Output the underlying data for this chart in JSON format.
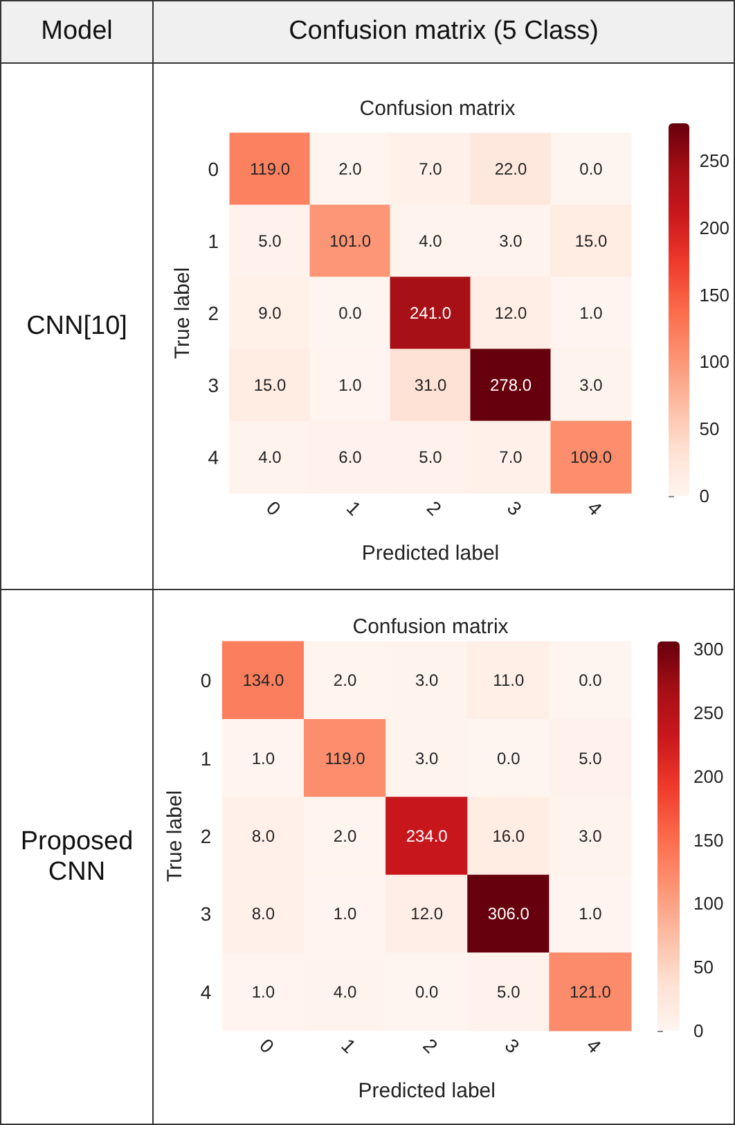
{
  "chart_data": [
    {
      "type": "other",
      "annotations": [
        "Model",
        "Confusion matrix (5 Class)",
        "CNN[10]",
        "Proposed CNN"
      ]
    },
    {
      "type": "heatmap",
      "title": "Confusion matrix",
      "xlabel": "Predicted label",
      "ylabel": "True label",
      "categories": [
        "0",
        "1",
        "2",
        "3",
        "4"
      ],
      "y_categories": [
        "0",
        "1",
        "2",
        "3",
        "4"
      ],
      "cells": [
        [
          119,
          2,
          7,
          22,
          0
        ],
        [
          5,
          101,
          4,
          3,
          15
        ],
        [
          9,
          0,
          241,
          12,
          1
        ],
        [
          15,
          1,
          31,
          278,
          3
        ],
        [
          4,
          6,
          5,
          7,
          109
        ]
      ],
      "cell_labels": [
        [
          "119.0",
          "2.0",
          "7.0",
          "22.0",
          "0.0"
        ],
        [
          "5.0",
          "101.0",
          "4.0",
          "3.0",
          "15.0"
        ],
        [
          "9.0",
          "0.0",
          "241.0",
          "12.0",
          "1.0"
        ],
        [
          "15.0",
          "1.0",
          "31.0",
          "278.0",
          "3.0"
        ],
        [
          "4.0",
          "6.0",
          "5.0",
          "7.0",
          "109.0"
        ]
      ],
      "clim": [
        0,
        278
      ],
      "cticks": [
        0,
        50,
        100,
        150,
        200,
        250
      ]
    },
    {
      "type": "heatmap",
      "title": "Confusion matrix",
      "xlabel": "Predicted label",
      "ylabel": "True label",
      "categories": [
        "0",
        "1",
        "2",
        "3",
        "4"
      ],
      "y_categories": [
        "0",
        "1",
        "2",
        "3",
        "4"
      ],
      "cells": [
        [
          134,
          2,
          3,
          11,
          0
        ],
        [
          1,
          119,
          3,
          0,
          5
        ],
        [
          8,
          2,
          234,
          16,
          3
        ],
        [
          8,
          1,
          12,
          306,
          1
        ],
        [
          1,
          4,
          0,
          5,
          121
        ]
      ],
      "cell_labels": [
        [
          "134.0",
          "2.0",
          "3.0",
          "11.0",
          "0.0"
        ],
        [
          "1.0",
          "119.0",
          "3.0",
          "0.0",
          "5.0"
        ],
        [
          "8.0",
          "2.0",
          "234.0",
          "16.0",
          "3.0"
        ],
        [
          "8.0",
          "1.0",
          "12.0",
          "306.0",
          "1.0"
        ],
        [
          "1.0",
          "4.0",
          "0.0",
          "5.0",
          "121.0"
        ]
      ],
      "clim": [
        0,
        306
      ],
      "cticks": [
        0,
        50,
        100,
        150,
        200,
        250,
        300
      ]
    }
  ]
}
